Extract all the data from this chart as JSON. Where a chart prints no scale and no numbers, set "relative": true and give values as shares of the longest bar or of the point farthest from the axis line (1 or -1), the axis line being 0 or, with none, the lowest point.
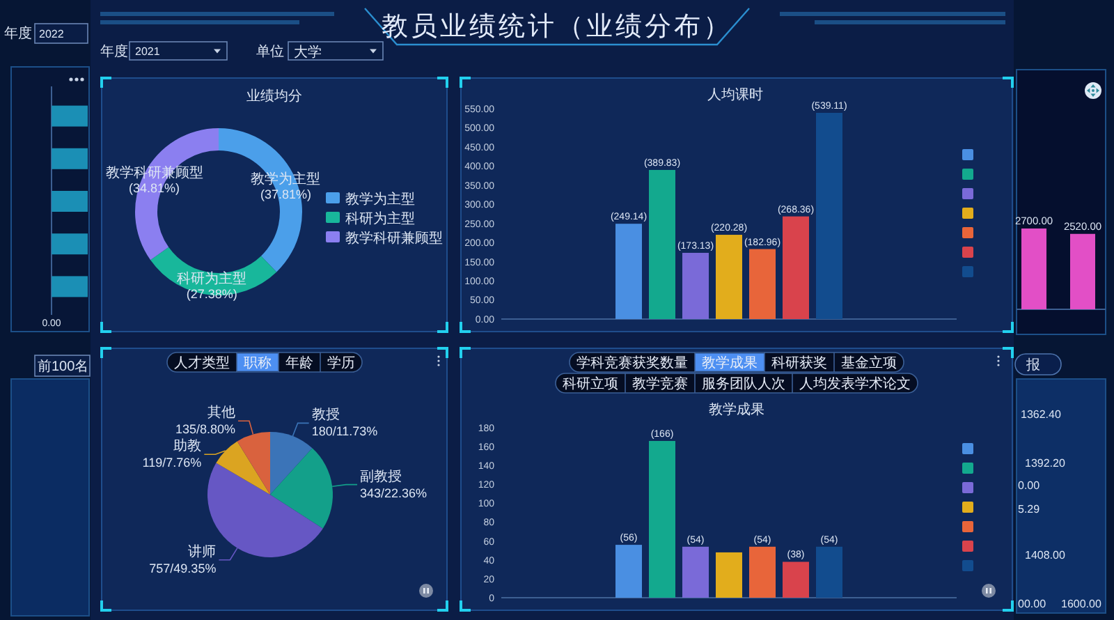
{
  "chart_data": [
    {
      "type": "other",
      "title": "教员业绩统计（业绩分布）",
      "annotations": [
        "年度",
        "2021",
        "单位",
        "大学"
      ]
    },
    {
      "type": "donut",
      "title": "业绩均分",
      "categories": [
        "教学为主型",
        "科研为主型",
        "教学科研兼顾型"
      ],
      "values": [
        37.81,
        27.38,
        34.81
      ],
      "value_labels": [
        "(37.81%)",
        "(27.38%)",
        "(34.81%)"
      ],
      "colors": [
        "#4b9fea",
        "#18b79b",
        "#8b7ff0"
      ],
      "legend": "right"
    },
    {
      "type": "bar",
      "title": "人均课时",
      "categories": [
        null
      ],
      "series": [
        {
          "color": "#4a8fe2",
          "values": [
            249.14
          ],
          "value_labels": [
            "(249.14)"
          ]
        },
        {
          "color": "#13a98e",
          "values": [
            389.83
          ],
          "value_labels": [
            "(389.83)"
          ]
        },
        {
          "color": "#7a6ad8",
          "values": [
            173.13
          ],
          "value_labels": [
            "(173.13)"
          ]
        },
        {
          "color": "#e2ad1c",
          "values": [
            220.28
          ],
          "value_labels": [
            "(220.28)"
          ]
        },
        {
          "color": "#e8653a",
          "values": [
            182.96
          ],
          "value_labels": [
            "(182.96)"
          ]
        },
        {
          "color": "#d9434c",
          "values": [
            268.36
          ],
          "value_labels": [
            "(268.36)"
          ]
        },
        {
          "color": "#124c8e",
          "values": [
            539.11
          ],
          "value_labels": [
            "(539.11)"
          ]
        }
      ],
      "ylim": [
        0,
        550
      ],
      "yticks": [
        {
          "value": 0,
          "label": "0.00"
        },
        {
          "value": 50,
          "label": "50.00"
        },
        {
          "value": 100,
          "label": "100.00"
        },
        {
          "value": 150,
          "label": "150.00"
        },
        {
          "value": 200,
          "label": "200.00"
        },
        {
          "value": 250,
          "label": "250.00"
        },
        {
          "value": 300,
          "label": "300.00"
        },
        {
          "value": 350,
          "label": "350.00"
        },
        {
          "value": 400,
          "label": "400.00"
        },
        {
          "value": 450,
          "label": "450.00"
        },
        {
          "value": 500,
          "label": "500.00"
        },
        {
          "value": 550,
          "label": "550.00"
        }
      ],
      "tick_labels": "y",
      "legend": "right"
    },
    {
      "type": "pie",
      "categories": [
        "教授",
        "副教授",
        "讲师",
        "助教",
        "其他"
      ],
      "values": [
        180,
        343,
        757,
        119,
        135
      ],
      "value_labels": [
        "180/11.73%",
        "343/22.36%",
        "757/49.35%",
        "119/7.76%",
        "135/8.80%"
      ],
      "colors": [
        "#3b74b8",
        "#13a08a",
        "#6657c4",
        "#dba421",
        "#d9623e"
      ],
      "annotations": [
        "人才类型",
        "职称",
        "年龄",
        "学历"
      ]
    },
    {
      "type": "bar",
      "title": "教学成果",
      "categories": [
        null
      ],
      "series": [
        {
          "color": "#4a8fe2",
          "values": [
            56
          ],
          "value_labels": [
            "(56)"
          ]
        },
        {
          "color": "#13a98e",
          "values": [
            166
          ],
          "value_labels": [
            "(166)"
          ]
        },
        {
          "color": "#7a6ad8",
          "values": [
            54
          ],
          "value_labels": [
            "(54)"
          ]
        },
        {
          "color": "#e2ad1c",
          "values": [
            48
          ],
          "value_labels": [
            null
          ]
        },
        {
          "color": "#e8653a",
          "values": [
            54
          ],
          "value_labels": [
            "(54)"
          ]
        },
        {
          "color": "#d9434c",
          "values": [
            38
          ],
          "value_labels": [
            "(38)"
          ]
        },
        {
          "color": "#124c8e",
          "values": [
            54
          ],
          "value_labels": [
            "(54)"
          ]
        }
      ],
      "ylim": [
        0,
        180
      ],
      "yticks": [
        0,
        20,
        40,
        60,
        80,
        100,
        120,
        140,
        160,
        180
      ],
      "tick_labels": "y",
      "legend": "right",
      "annotations": [
        "学科竞赛获奖数量",
        "教学成果",
        "科研获奖",
        "基金立项",
        "科研立项",
        "教学竞赛",
        "服务团队人次",
        "人均发表学术论文"
      ]
    },
    {
      "type": "bar",
      "orientation": "horizontal",
      "relative": true,
      "categories": [
        null,
        null,
        null,
        null,
        null
      ],
      "values": [
        1,
        1,
        1,
        1,
        1
      ],
      "color": "#1b8fb5",
      "annotations": [
        "年度",
        "2022",
        "0.00",
        "前100名"
      ]
    },
    {
      "type": "bar",
      "categories": [
        null,
        null
      ],
      "values": [
        2700,
        2520
      ],
      "value_labels": [
        "2700.00",
        "2520.00"
      ],
      "color": "#e24fc6"
    },
    {
      "type": "other",
      "annotations": [
        "报",
        "1362.40",
        "1392.20",
        "0.00",
        "5.29",
        "1408.00",
        "00.00",
        "1600.00"
      ]
    }
  ]
}
